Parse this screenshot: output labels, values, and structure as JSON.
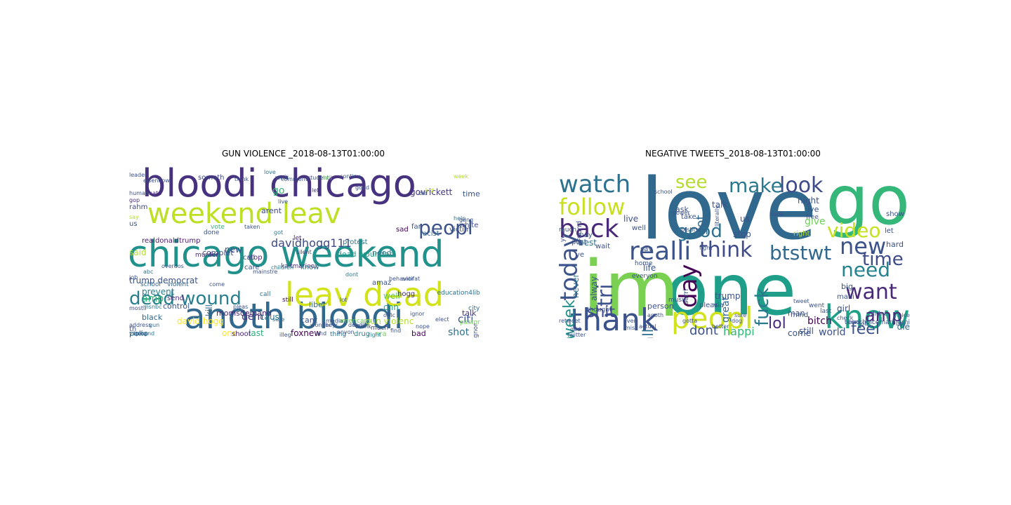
{
  "panels": [
    {
      "title": "GUN VIOLENCE _2018-08-13T01:00:00",
      "words": [
        {
          "text": "bloodi chicago",
          "color": "#46327e"
        },
        {
          "text": "weekend leav",
          "color": "#bddf26"
        },
        {
          "text": "chicago weekend",
          "color": "#21918c"
        },
        {
          "text": "anoth bloodi",
          "color": "#31688e"
        },
        {
          "text": "leav dead",
          "color": "#d2e21b"
        },
        {
          "text": "dead wound",
          "color": "#277f8e"
        },
        {
          "text": "peopl",
          "color": "#3b528b"
        },
        {
          "text": "davidhogg111",
          "color": "#3e4a89"
        },
        {
          "text": "trump democrat",
          "color": "#3b528b"
        },
        {
          "text": "dead wounded",
          "color": "#1f9e89"
        },
        {
          "text": "protest",
          "color": "#2a788e"
        },
        {
          "text": "realdonaldtrump",
          "color": "#481a6c"
        },
        {
          "text": "need",
          "color": "#2c728e"
        },
        {
          "text": "prevent",
          "color": "#287c8e"
        },
        {
          "text": "control",
          "color": "#39568c"
        },
        {
          "text": "momsdemand",
          "color": "#482475"
        },
        {
          "text": "david hogg",
          "color": "#fde725"
        },
        {
          "text": "last",
          "color": "#2db27d"
        },
        {
          "text": "shot",
          "color": "#2c728e"
        },
        {
          "text": "citi",
          "color": "#3b528b"
        },
        {
          "text": "foxnew",
          "color": "#440154"
        },
        {
          "text": "black",
          "color": "#31688e"
        },
        {
          "text": "amp",
          "color": "#35b779"
        },
        {
          "text": "cnn",
          "color": "#1fa188"
        },
        {
          "text": "govrickett",
          "color": "#453781"
        },
        {
          "text": "kaitmarieox",
          "color": "#472d7b"
        },
        {
          "text": "complet",
          "color": "#3e4a89"
        },
        {
          "text": "someth",
          "color": "#414487"
        },
        {
          "text": "murder",
          "color": "#482878"
        },
        {
          "text": "violent",
          "color": "#355f8d"
        },
        {
          "text": "school",
          "color": "#306a8e"
        },
        {
          "text": "liber",
          "color": "#2e6e8e"
        },
        {
          "text": "gun violenc",
          "color": "#b5de2b"
        },
        {
          "text": "silent",
          "color": "#3e4a89"
        },
        {
          "text": "well",
          "color": "#5ec962"
        },
        {
          "text": "amaz",
          "color": "#3b528b"
        },
        {
          "text": "nra",
          "color": "#6ece58"
        },
        {
          "text": "bad",
          "color": "#440154"
        },
        {
          "text": "drug",
          "color": "#26828e"
        },
        {
          "text": "thing",
          "color": "#2d708e"
        },
        {
          "text": "right",
          "color": "#25848e"
        },
        {
          "text": "polic",
          "color": "#2c728e"
        },
        {
          "text": "send",
          "color": "#472d7b"
        },
        {
          "text": "new",
          "color": "#3b528b"
        },
        {
          "text": "stop",
          "color": "#482878"
        },
        {
          "text": "call",
          "color": "#3b528b"
        },
        {
          "text": "said",
          "color": "#b5de2b"
        },
        {
          "text": "rahm",
          "color": "#3e4a89"
        },
        {
          "text": "us",
          "color": "#3b528b"
        },
        {
          "text": "dem",
          "color": "#46327e"
        },
        {
          "text": "cant",
          "color": "#3b528b"
        },
        {
          "text": "one",
          "color": "#fde725"
        },
        {
          "text": "kill",
          "color": "#31688e"
        },
        {
          "text": "know",
          "color": "#2a788e"
        },
        {
          "text": "hogg",
          "color": "#482878"
        },
        {
          "text": "arent",
          "color": "#3e4a89"
        },
        {
          "text": "time",
          "color": "#3b528b"
        },
        {
          "text": "talk",
          "color": "#453781"
        },
        {
          "text": "white",
          "color": "#3e4a89"
        },
        {
          "text": "victim",
          "color": "#3b528b"
        },
        {
          "text": "racist",
          "color": "#31688e"
        },
        {
          "text": "far",
          "color": "#3b528b"
        },
        {
          "text": "sad",
          "color": "#440154"
        },
        {
          "text": "go",
          "color": "#35b779"
        },
        {
          "text": "call",
          "color": "#2c728e"
        },
        {
          "text": "human",
          "color": "#3b528b"
        },
        {
          "text": "hate",
          "color": "#482878"
        },
        {
          "text": "children",
          "color": "#2a788e"
        },
        {
          "text": "shoot",
          "color": "#482878"
        },
        {
          "text": "vote",
          "color": "#35b779"
        },
        {
          "text": "caus",
          "color": "#2a788e"
        },
        {
          "text": "care",
          "color": "#3b528b"
        },
        {
          "text": "let",
          "color": "#482878"
        },
        {
          "text": "much",
          "color": "#3e4a89"
        },
        {
          "text": "pastor",
          "color": "#6ece58"
        },
        {
          "text": "elect",
          "color": "#3b528b"
        },
        {
          "text": "help",
          "color": "#2c728e"
        },
        {
          "text": "done",
          "color": "#3b528b"
        },
        {
          "text": "th",
          "color": "#3b528b"
        },
        {
          "text": "yup",
          "color": "#31688e"
        },
        {
          "text": "hand",
          "color": "#2a788e"
        },
        {
          "text": "job",
          "color": "#3b528b"
        },
        {
          "text": "mostli",
          "color": "#3e4a89"
        },
        {
          "text": "troop",
          "color": "#3b528b"
        },
        {
          "text": "sure",
          "color": "#31688e"
        },
        {
          "text": "wait",
          "color": "#3b528b"
        },
        {
          "text": "gop",
          "color": "#482878"
        },
        {
          "text": "left",
          "color": "#453781"
        },
        {
          "text": "live",
          "color": "#3b528b"
        },
        {
          "text": "got",
          "color": "#2a788e"
        },
        {
          "text": "gun",
          "color": "#2c728e"
        },
        {
          "text": "illeg",
          "color": "#3b528b"
        },
        {
          "text": "signor",
          "color": "#3b528b"
        },
        {
          "text": "city",
          "color": "#2c728e"
        },
        {
          "text": "education4lib",
          "color": "#2c728e"
        },
        {
          "text": "americans",
          "color": "#6ece58"
        },
        {
          "text": "overdos",
          "color": "#3b528b"
        },
        {
          "text": "thank",
          "color": "#3b528b"
        },
        {
          "text": "still",
          "color": "#440154"
        },
        {
          "text": "love",
          "color": "#2c728e"
        },
        {
          "text": "think",
          "color": "#3b528b"
        },
        {
          "text": "comment",
          "color": "#3b528b"
        },
        {
          "text": "student",
          "color": "#3b528b"
        },
        {
          "text": "tell",
          "color": "#6ece58"
        },
        {
          "text": "continu",
          "color": "#3b528b"
        },
        {
          "text": "week",
          "color": "#b5de2b"
        },
        {
          "text": "good",
          "color": "#3b528b"
        },
        {
          "text": "kid",
          "color": "#b5de2b"
        },
        {
          "text": "gang",
          "color": "#3b528b"
        },
        {
          "text": "msnbc",
          "color": "#2c728e"
        },
        {
          "text": "say",
          "color": "#b5de2b"
        },
        {
          "text": "abc",
          "color": "#2a788e"
        },
        {
          "text": "nope",
          "color": "#3b528b"
        },
        {
          "text": "media",
          "color": "#3b528b"
        },
        {
          "text": "anyon",
          "color": "#3b528b"
        },
        {
          "text": "come",
          "color": "#3b528b"
        },
        {
          "text": "dont",
          "color": "#2a788e"
        },
        {
          "text": "behavior",
          "color": "#3b528b"
        },
        {
          "text": "mainstre",
          "color": "#3b528b"
        },
        {
          "text": "theyr",
          "color": "#3b528b"
        },
        {
          "text": "deadli",
          "color": "#3b528b"
        },
        {
          "text": "pleas",
          "color": "#3b528b"
        },
        {
          "text": "address",
          "color": "#3b528b"
        },
        {
          "text": "eisenhow",
          "color": "#3b528b"
        },
        {
          "text": "leader",
          "color": "#3b528b"
        },
        {
          "text": "find",
          "color": "#3b528b"
        },
        {
          "text": "end",
          "color": "#3b528b"
        },
        {
          "text": "antifat",
          "color": "#3b528b"
        },
        {
          "text": "wonder",
          "color": "#3b528b"
        },
        {
          "text": "offic",
          "color": "#3b528b"
        },
        {
          "text": "ignor",
          "color": "#3b528b"
        },
        {
          "text": "die",
          "color": "#3b528b"
        },
        {
          "text": "taken",
          "color": "#3b528b"
        },
        {
          "text": "lot",
          "color": "#3b528b"
        },
        {
          "text": "mean",
          "color": "#3b528b"
        },
        {
          "text": "two",
          "color": "#3b528b"
        }
      ]
    },
    {
      "title": "NEGATIVE TWEETS_2018-08-13T01:00:00",
      "words": [
        {
          "text": "love",
          "color": "#31688e"
        },
        {
          "text": "one",
          "color": "#1f9e89"
        },
        {
          "text": "im",
          "color": "#7ad151"
        },
        {
          "text": "go",
          "color": "#35b779"
        },
        {
          "text": "know",
          "color": "#1fa188"
        },
        {
          "text": "thank",
          "color": "#3b528b"
        },
        {
          "text": "peopl",
          "color": "#d2e21b"
        },
        {
          "text": "watch",
          "color": "#2c728e"
        },
        {
          "text": "follow",
          "color": "#c8e020"
        },
        {
          "text": "back",
          "color": "#482878"
        },
        {
          "text": "realli",
          "color": "#3b528b"
        },
        {
          "text": "think",
          "color": "#3e4a89"
        },
        {
          "text": "btstwt",
          "color": "#31688e"
        },
        {
          "text": "new",
          "color": "#3b528b"
        },
        {
          "text": "want",
          "color": "#482878"
        },
        {
          "text": "need",
          "color": "#26828e"
        },
        {
          "text": "video",
          "color": "#c8e020"
        },
        {
          "text": "look",
          "color": "#3e4a89"
        },
        {
          "text": "make",
          "color": "#2a788e"
        },
        {
          "text": "see",
          "color": "#b5de2b"
        },
        {
          "text": "good",
          "color": "#2c728e"
        },
        {
          "text": "time",
          "color": "#3e4a89"
        },
        {
          "text": "today",
          "color": "#3b528b"
        },
        {
          "text": "week",
          "color": "#21918c"
        },
        {
          "text": "fuck",
          "color": "#2a788e"
        },
        {
          "text": "day",
          "color": "#440154"
        },
        {
          "text": "tri",
          "color": "#3b528b"
        },
        {
          "text": "amp",
          "color": "#482878"
        },
        {
          "text": "lol",
          "color": "#472d7b"
        },
        {
          "text": "feel",
          "color": "#3b528b"
        },
        {
          "text": "shit",
          "color": "#3e4a89"
        },
        {
          "text": "call",
          "color": "#2c728e"
        },
        {
          "text": "dont",
          "color": "#3b528b"
        },
        {
          "text": "happi",
          "color": "#35b779"
        },
        {
          "text": "got",
          "color": "#31688e"
        },
        {
          "text": "stop",
          "color": "#3b528b"
        },
        {
          "text": "trump",
          "color": "#3b528b"
        },
        {
          "text": "great",
          "color": "#31688e"
        },
        {
          "text": "bitch",
          "color": "#440154"
        },
        {
          "text": "girl",
          "color": "#3b528b"
        },
        {
          "text": "give",
          "color": "#6ece58"
        },
        {
          "text": "right",
          "color": "#b5de2b"
        },
        {
          "text": "man",
          "color": "#3b528b"
        },
        {
          "text": "world",
          "color": "#3b528b"
        },
        {
          "text": "come",
          "color": "#3b528b"
        },
        {
          "text": "die",
          "color": "#31688e"
        },
        {
          "text": "big",
          "color": "#3b528b"
        },
        {
          "text": "still",
          "color": "#3b528b"
        },
        {
          "text": "mani",
          "color": "#3b528b"
        },
        {
          "text": "us",
          "color": "#3b528b"
        },
        {
          "text": "live",
          "color": "#3b528b"
        },
        {
          "text": "well",
          "color": "#3b528b"
        },
        {
          "text": "best",
          "color": "#2c728e"
        },
        {
          "text": "say",
          "color": "#3b528b"
        },
        {
          "text": "ye",
          "color": "#3b528b"
        },
        {
          "text": "never",
          "color": "#2c728e"
        },
        {
          "text": "alway",
          "color": "#3b528b"
        },
        {
          "text": "life",
          "color": "#3b528b"
        },
        {
          "text": "let",
          "color": "#3b528b"
        },
        {
          "text": "hard",
          "color": "#3b528b"
        },
        {
          "text": "show",
          "color": "#3b528b"
        },
        {
          "text": "night",
          "color": "#3b528b"
        },
        {
          "text": "ive",
          "color": "#3b528b"
        },
        {
          "text": "free",
          "color": "#3b528b"
        },
        {
          "text": "ask",
          "color": "#3b528b"
        },
        {
          "text": "take",
          "color": "#3b528b"
        },
        {
          "text": "talk",
          "color": "#3b528b"
        },
        {
          "text": "much",
          "color": "#3b528b"
        },
        {
          "text": "wait",
          "color": "#3b528b"
        },
        {
          "text": "may",
          "color": "#3b528b"
        },
        {
          "text": "post",
          "color": "#3b528b"
        },
        {
          "text": "around",
          "color": "#3b528b"
        },
        {
          "text": "home",
          "color": "#3b528b"
        },
        {
          "text": "school",
          "color": "#3b528b"
        },
        {
          "text": "year",
          "color": "#3b528b"
        },
        {
          "text": "pleas",
          "color": "#3b528b"
        },
        {
          "text": "sorri",
          "color": "#3b528b"
        },
        {
          "text": "via",
          "color": "#3b528b"
        },
        {
          "text": "music",
          "color": "#3b528b"
        },
        {
          "text": "everyon",
          "color": "#3b528b"
        },
        {
          "text": "person",
          "color": "#3b528b"
        },
        {
          "text": "thought",
          "color": "#3b528b"
        },
        {
          "text": "miss",
          "color": "#3b528b"
        },
        {
          "text": "dog",
          "color": "#3b528b"
        },
        {
          "text": "better",
          "color": "#3b528b"
        },
        {
          "text": "last",
          "color": "#3b528b"
        },
        {
          "text": "mind",
          "color": "#3b528b"
        },
        {
          "text": "went",
          "color": "#3b528b"
        },
        {
          "text": "end",
          "color": "#3b528b"
        },
        {
          "text": "teenchoicemarn arni",
          "color": "#3b528b"
        },
        {
          "text": "job",
          "color": "#3b528b"
        },
        {
          "text": "boy",
          "color": "#3b528b"
        },
        {
          "text": "nice",
          "color": "#3b528b"
        },
        {
          "text": "didnt",
          "color": "#3b528b"
        },
        {
          "text": "check",
          "color": "#3b528b"
        },
        {
          "text": "tweet",
          "color": "#3b528b"
        },
        {
          "text": "god",
          "color": "#3b528b"
        },
        {
          "text": "retweet",
          "color": "#3b528b"
        },
        {
          "text": "fight",
          "color": "#3b528b"
        },
        {
          "text": "gotta",
          "color": "#3b528b"
        },
        {
          "text": "nope",
          "color": "#3b528b"
        },
        {
          "text": "literally",
          "color": "#3b528b"
        },
        {
          "text": "sure",
          "color": "#3b528b"
        },
        {
          "text": "actual",
          "color": "#3b528b"
        },
        {
          "text": "twitter",
          "color": "#3b528b"
        },
        {
          "text": "anoth",
          "color": "#3b528b"
        },
        {
          "text": "everi",
          "color": "#3b528b"
        },
        {
          "text": "power",
          "color": "#3b528b"
        },
        {
          "text": "btsbtst",
          "color": "#3b528b"
        }
      ]
    }
  ]
}
